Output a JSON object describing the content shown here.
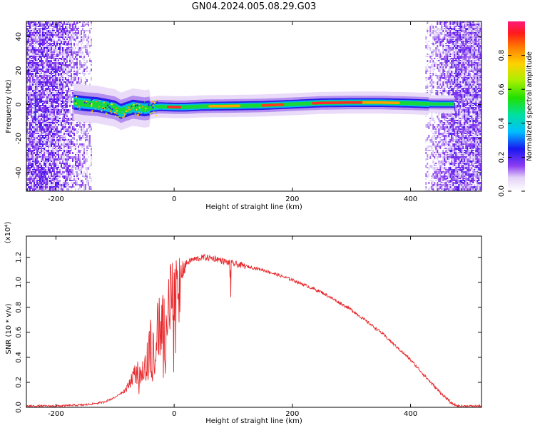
{
  "title": "GN04.2024.005.08.29.G03",
  "chart_data": [
    {
      "type": "heatmap",
      "xlabel": "Height of straight line (km)",
      "ylabel": "Frequency (Hz)",
      "xlim": [
        -250,
        520
      ],
      "ylim": [
        -51,
        49
      ],
      "xticks": [
        -200,
        0,
        200,
        400
      ],
      "yticks": [
        -40,
        -20,
        0,
        20,
        40
      ],
      "colorbar": {
        "label": "Normalized spectral amplitude",
        "range": [
          0,
          1
        ],
        "ticks": [
          "0.0",
          "0.2",
          "0.4",
          "0.6",
          "0.8"
        ]
      },
      "ridge": {
        "x": [
          -170,
          -150,
          -130,
          -115,
          -100,
          -90,
          -70,
          -50,
          -25,
          0,
          20,
          50,
          100,
          150,
          200,
          250,
          300,
          350,
          400,
          430,
          450,
          475
        ],
        "y": [
          1.5,
          0.5,
          0,
          -1,
          -2,
          -4,
          -1.5,
          -2.5,
          -1.2,
          -1.5,
          -1.5,
          -1,
          -0.8,
          -0.5,
          0.2,
          1,
          1.2,
          1.2,
          0.8,
          0.4,
          0.3,
          0.3
        ]
      },
      "noise_regions": [
        [
          -250,
          -140
        ],
        [
          425,
          520
        ]
      ]
    },
    {
      "type": "line",
      "xlabel": "Height of straight line (km)",
      "ylabel": "SNR (10 * v/v)",
      "yscale_label": "(x10⁴)",
      "xlim": [
        -250,
        520
      ],
      "ylim": [
        0,
        1.37
      ],
      "xticks": [
        -200,
        0,
        200,
        400
      ],
      "yticks": [
        "0.0",
        "0.2",
        "0.4",
        "0.6",
        "0.8",
        "1.0",
        "1.2"
      ],
      "series": [
        {
          "color": "#e8272a",
          "x": [
            -250,
            -200,
            -150,
            -120,
            -100,
            -80,
            -70,
            -60,
            -50,
            -40,
            -30,
            -20,
            -10,
            0,
            10,
            20,
            30,
            50,
            70,
            90,
            100,
            150,
            200,
            250,
            300,
            350,
            400,
            430,
            450,
            470,
            480,
            500,
            520
          ],
          "y": [
            0.01,
            0.01,
            0.02,
            0.04,
            0.08,
            0.15,
            0.25,
            0.3,
            0.35,
            0.45,
            0.55,
            0.6,
            0.7,
            0.95,
            1.05,
            1.15,
            1.18,
            1.2,
            1.19,
            1.16,
            1.15,
            1.1,
            1.02,
            0.92,
            0.78,
            0.6,
            0.38,
            0.22,
            0.12,
            0.03,
            0.01,
            0.01,
            0.01
          ]
        }
      ]
    }
  ]
}
